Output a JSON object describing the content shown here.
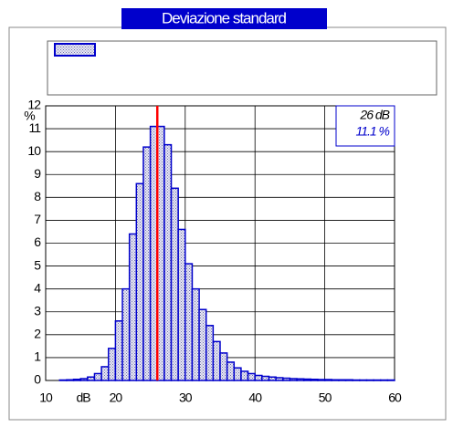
{
  "chart_data": {
    "type": "histogram",
    "title": "Deviazione standard",
    "bins": [
      12,
      13,
      14,
      15,
      16,
      17,
      18,
      19,
      20,
      21,
      22,
      23,
      24,
      25,
      26,
      27,
      28,
      29,
      30,
      31,
      32,
      33,
      34,
      35,
      36,
      37,
      38,
      39,
      40,
      41,
      42,
      43,
      44,
      45,
      46,
      47,
      48,
      49,
      50,
      51,
      52,
      53,
      54,
      55,
      56,
      57,
      58,
      59,
      60
    ],
    "counts": [
      0.02,
      0.03,
      0.05,
      0.08,
      0.15,
      0.3,
      0.6,
      1.4,
      2.6,
      4.0,
      6.4,
      8.6,
      10.2,
      11.1,
      11.1,
      10.3,
      8.4,
      6.6,
      5.1,
      4.0,
      3.1,
      2.4,
      1.7,
      1.2,
      0.8,
      0.55,
      0.4,
      0.3,
      0.22,
      0.18,
      0.15,
      0.12,
      0.1,
      0.08,
      0.07,
      0.06,
      0.05,
      0.04,
      0.04,
      0.03,
      0.03,
      0.03,
      0.02,
      0.02,
      0.02,
      0.02,
      0.02,
      0.02
    ],
    "color": "#0000cc",
    "xlabel": "dB",
    "ylabel": "%",
    "xlim": [
      10,
      60
    ],
    "xticks": [
      10,
      20,
      30,
      40,
      50,
      60
    ],
    "ylim": [
      0,
      12
    ],
    "yticks": [
      0,
      1,
      2,
      3,
      4,
      5,
      6,
      7,
      8,
      9,
      10,
      11,
      12
    ],
    "grid": true,
    "marker": {
      "x": 26,
      "label": "26 dB",
      "value": 11.1,
      "value_label": "11.1 %",
      "color": "#ff0000"
    }
  }
}
